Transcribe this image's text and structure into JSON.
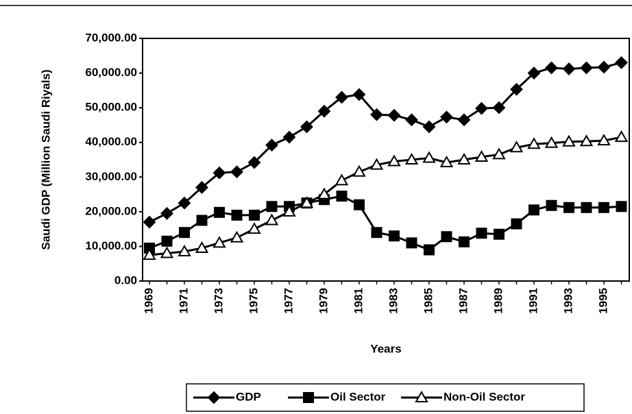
{
  "chart_data": {
    "type": "line",
    "x_label": "Years",
    "y_label": "Saudi GDP (Million Saudi Riyals)",
    "categories": [
      "1969",
      null,
      "1971",
      null,
      "1973",
      null,
      "1975",
      null,
      "1977",
      null,
      "1979",
      null,
      "1981",
      null,
      "1983",
      null,
      "1985",
      null,
      "1987",
      null,
      "1989",
      null,
      "1991",
      null,
      "1993",
      null,
      "1995",
      null
    ],
    "series": [
      {
        "name": "GDP",
        "color": "#000000",
        "marker": "diamond",
        "values": [
          17000,
          19500,
          22500,
          27000,
          31200,
          31500,
          34200,
          39200,
          41500,
          44500,
          49000,
          53000,
          53800,
          48000,
          47800,
          46500,
          44500,
          47300,
          46500,
          49800,
          50000,
          55300,
          60000,
          61500,
          61200,
          61500,
          61700,
          63000
        ]
      },
      {
        "name": "Oil Sector",
        "color": "#000000",
        "marker": "square",
        "values": [
          9500,
          11500,
          14000,
          17500,
          19800,
          19000,
          19000,
          21500,
          21500,
          22500,
          23500,
          24500,
          22000,
          14000,
          13000,
          11000,
          9000,
          12800,
          11300,
          13800,
          13500,
          16500,
          20500,
          21800,
          21200,
          21200,
          21200,
          21500
        ]
      },
      {
        "name": "Non-Oil Sector",
        "color": "#000000",
        "marker": "triangle",
        "values": [
          7500,
          8000,
          8500,
          9500,
          11000,
          12500,
          15000,
          17500,
          20000,
          22500,
          25000,
          29000,
          31500,
          33500,
          34500,
          35000,
          35500,
          34200,
          35000,
          35800,
          36500,
          38500,
          39500,
          39800,
          40200,
          40300,
          40500,
          41500
        ]
      }
    ],
    "ylim": [
      0,
      70000
    ],
    "yticks": [
      {
        "value": 0,
        "label": "0.00"
      },
      {
        "value": 10000,
        "label": "10,000.00"
      },
      {
        "value": 20000,
        "label": "20,000.00"
      },
      {
        "value": 30000,
        "label": "30,000.00"
      },
      {
        "value": 40000,
        "label": "40,000.00"
      },
      {
        "value": 50000,
        "label": "50,000.00"
      },
      {
        "value": 60000,
        "label": "60,000.00"
      },
      {
        "value": 70000,
        "label": "70,000.00"
      }
    ],
    "grid": false,
    "legend": "bottom"
  }
}
